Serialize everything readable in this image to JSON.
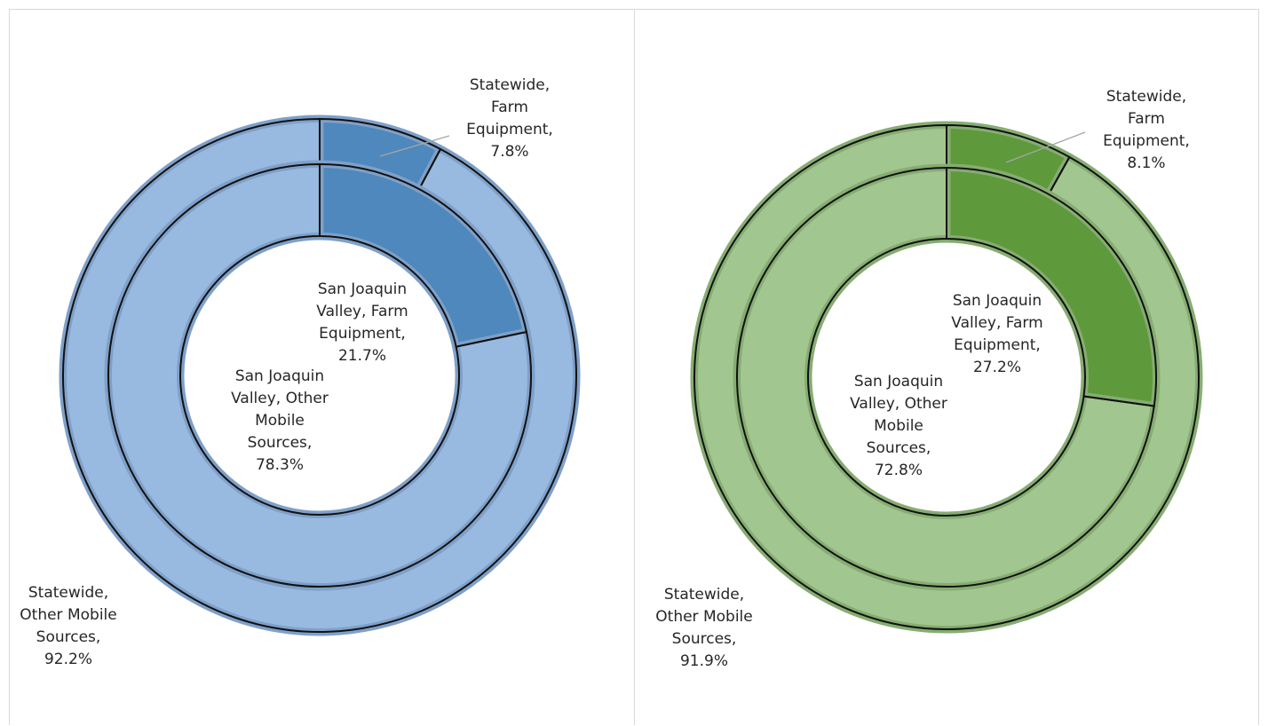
{
  "chart_data": [
    {
      "type": "doughnut",
      "colors": {
        "highlight": "#4e88bd",
        "base": "#98b9e0",
        "border": "#7fa0c8"
      },
      "outer_ring": [
        {
          "label": [
            "Statewide,",
            "Farm",
            "Equipment,",
            "7.8%"
          ],
          "value": 7.8
        },
        {
          "label": [
            "Statewide,",
            "Other Mobile",
            "Sources,",
            "92.2%"
          ],
          "value": 92.2
        }
      ],
      "inner_ring": [
        {
          "label": [
            "San Joaquin",
            "Valley, Farm",
            "Equipment,",
            "21.7%"
          ],
          "value": 21.7
        },
        {
          "label": [
            "San Joaquin",
            "Valley, Other",
            "Mobile",
            "Sources,",
            "78.3%"
          ],
          "value": 78.3
        }
      ]
    },
    {
      "type": "doughnut",
      "colors": {
        "highlight": "#5e9a3c",
        "base": "#a2c68f",
        "border": "#86ad72"
      },
      "outer_ring": [
        {
          "label": [
            "Statewide,",
            "Farm",
            "Equipment,",
            "8.1%"
          ],
          "value": 8.1
        },
        {
          "label": [
            "Statewide,",
            "Other Mobile",
            "Sources,",
            "91.9%"
          ],
          "value": 91.9
        }
      ],
      "inner_ring": [
        {
          "label": [
            "San Joaquin",
            "Valley, Farm",
            "Equipment,",
            "27.2%"
          ],
          "value": 27.2
        },
        {
          "label": [
            "San Joaquin",
            "Valley, Other",
            "Mobile",
            "Sources,",
            "72.8%"
          ],
          "value": 72.8
        }
      ]
    }
  ]
}
